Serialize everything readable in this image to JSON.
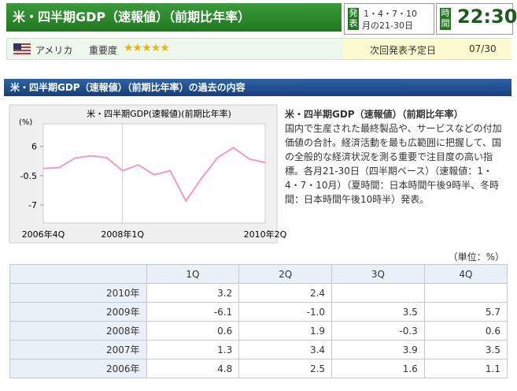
{
  "header": {
    "title": "米・四半期GDP（速報値）（前期比年率）",
    "release_label": "発表",
    "release_schedule": "1・4・7・10",
    "release_days": "月の21-30日",
    "time_label": "時間",
    "time": "22:30",
    "country": "アメリカ",
    "importance_label": "重要度",
    "next_label": "次回発表予定日",
    "next_date": "07/30"
  },
  "section_title": "米・四半期GDP（速報値）（前期比年率）の過去の内容",
  "chart_data": {
    "type": "line",
    "title": "米・四半期GDP(速報値)(前期比年率)",
    "y_label": "(%)",
    "categories": [
      "2006年4Q",
      null,
      null,
      null,
      null,
      "2008年1Q",
      null,
      null,
      null,
      null,
      null,
      null,
      null,
      null,
      "2010年2Q"
    ],
    "series": [
      {
        "color": "#f49ac1",
        "values": [
          1.1,
          1.3,
          3.4,
          3.9,
          3.5,
          0.6,
          1.9,
          -0.3,
          0.6,
          -6.1,
          -1.0,
          3.5,
          5.7,
          3.2,
          2.4
        ]
      }
    ],
    "ylim": [
      -11,
      11
    ],
    "yticks": [
      6,
      -0.5,
      -7
    ]
  },
  "description": {
    "title": "米・四半期GDP（速報値）（前期比年率）",
    "body": "国内で生産された最終製品や、サービスなどの付加価値の合計。経済活動を最も広範囲に把握して、国の全般的な経済状況を測る重要で注目度の高い指標。各月21-30日（四半期ベース）（速報値：1・4・7・10月）（夏時間：日本時間午後9時半、冬時間：日本時間午後10時半）発表。"
  },
  "table": {
    "unit": "（単位：%）",
    "columns": [
      "1Q",
      "2Q",
      "3Q",
      "4Q"
    ],
    "rows": [
      {
        "year": "2010年",
        "values": [
          "3.2",
          "2.4"
        ]
      },
      {
        "year": "2009年",
        "values": [
          "-6.1",
          "-1.0",
          "3.5",
          "5.7"
        ]
      },
      {
        "year": "2008年",
        "values": [
          "0.6",
          "1.9",
          "-0.3",
          "0.6"
        ]
      },
      {
        "year": "2007年",
        "values": [
          "1.3",
          "3.4",
          "3.9",
          "3.5"
        ]
      },
      {
        "year": "2006年",
        "values": [
          "4.8",
          "2.5",
          "1.6",
          "1.1"
        ]
      }
    ]
  }
}
